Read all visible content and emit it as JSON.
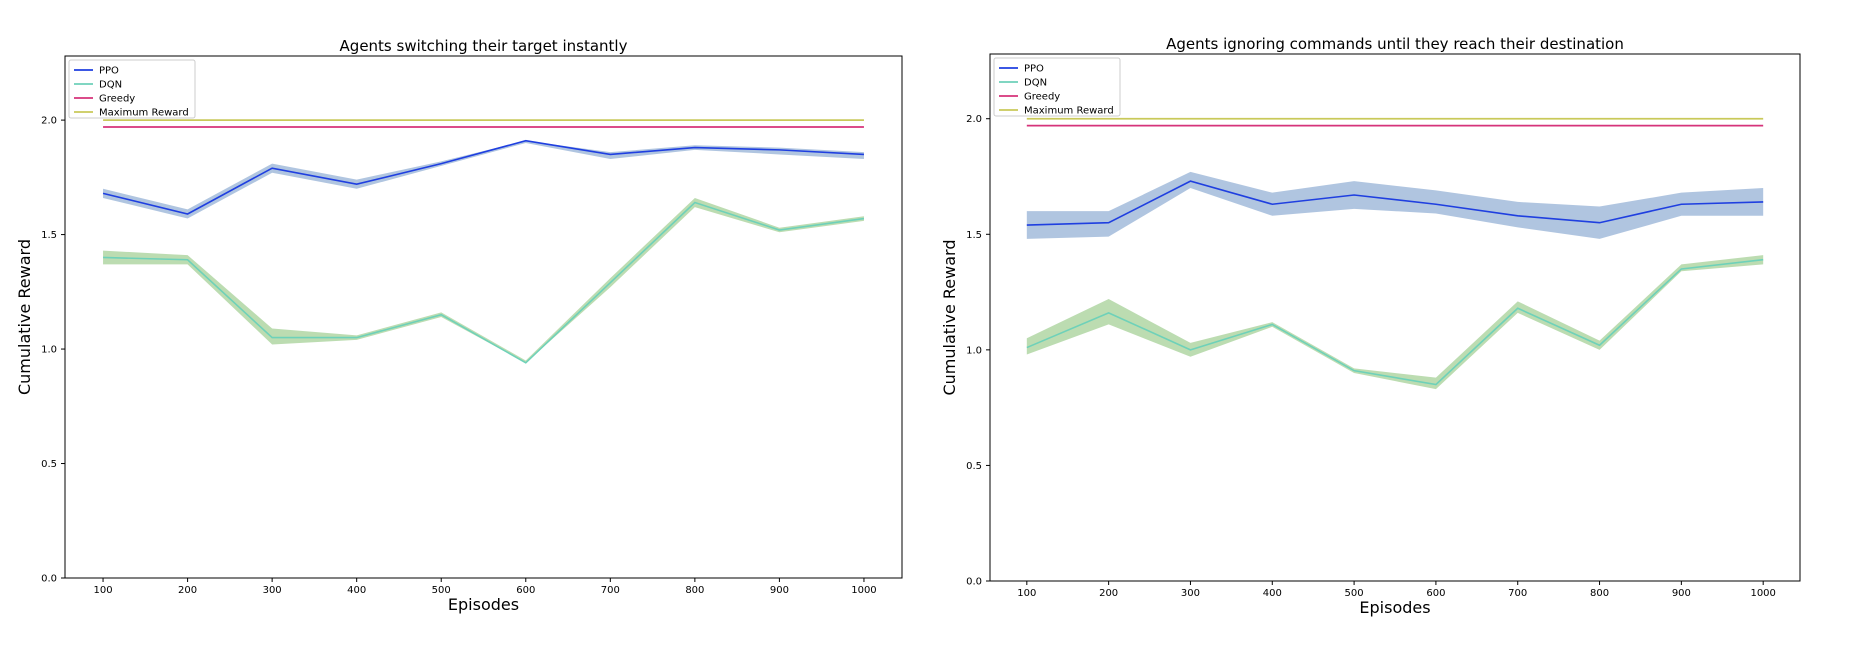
{
  "chart_data": [
    {
      "type": "line",
      "title": "Agents switching their target instantly",
      "xlabel": "Episodes",
      "ylabel": "Cumulative Reward",
      "x": [
        100,
        200,
        300,
        400,
        500,
        600,
        700,
        800,
        900,
        1000
      ],
      "xlim": [
        55,
        1045
      ],
      "ylim": [
        0.0,
        2.28
      ],
      "xticks": [
        "100",
        "200",
        "300",
        "400",
        "500",
        "600",
        "700",
        "800",
        "900",
        "1000"
      ],
      "yticks": [
        "0.0",
        "0.5",
        "1.0",
        "1.5",
        "2.0"
      ],
      "legend_position": "top-left",
      "grid": false,
      "series": [
        {
          "name": "PPO",
          "color": "#1f3fe0",
          "band_color": "#a7bfdd",
          "values": [
            1.68,
            1.59,
            1.79,
            1.72,
            1.81,
            1.91,
            1.85,
            1.88,
            1.87,
            1.85
          ],
          "lower": [
            1.66,
            1.57,
            1.77,
            1.7,
            1.8,
            1.9,
            1.83,
            1.87,
            1.85,
            1.83
          ],
          "upper": [
            1.7,
            1.61,
            1.81,
            1.74,
            1.82,
            1.91,
            1.86,
            1.89,
            1.88,
            1.86
          ]
        },
        {
          "name": "DQN",
          "color": "#6ed1b9",
          "band_color": "#b5d8a8",
          "values": [
            1.4,
            1.39,
            1.05,
            1.05,
            1.15,
            0.94,
            1.29,
            1.64,
            1.52,
            1.57
          ],
          "lower": [
            1.37,
            1.37,
            1.02,
            1.04,
            1.14,
            0.94,
            1.27,
            1.62,
            1.51,
            1.56
          ],
          "upper": [
            1.43,
            1.41,
            1.09,
            1.06,
            1.16,
            0.95,
            1.31,
            1.66,
            1.53,
            1.58
          ]
        },
        {
          "name": "Greedy",
          "color": "#d6337a",
          "values": [
            1.97,
            1.97,
            1.97,
            1.97,
            1.97,
            1.97,
            1.97,
            1.97,
            1.97,
            1.97
          ]
        },
        {
          "name": "Maximum Reward",
          "color": "#c9c95a",
          "values": [
            2.0,
            2.0,
            2.0,
            2.0,
            2.0,
            2.0,
            2.0,
            2.0,
            2.0,
            2.0
          ]
        }
      ]
    },
    {
      "type": "line",
      "title": "Agents ignoring commands until they reach their destination",
      "xlabel": "Episodes",
      "ylabel": "Cumulative Reward",
      "x": [
        100,
        200,
        300,
        400,
        500,
        600,
        700,
        800,
        900,
        1000
      ],
      "xlim": [
        55,
        1045
      ],
      "ylim": [
        0.0,
        2.28
      ],
      "xticks": [
        "100",
        "200",
        "300",
        "400",
        "500",
        "600",
        "700",
        "800",
        "900",
        "1000"
      ],
      "yticks": [
        "0.0",
        "0.5",
        "1.0",
        "1.5",
        "2.0"
      ],
      "legend_position": "top-left",
      "grid": false,
      "series": [
        {
          "name": "PPO",
          "color": "#1f3fe0",
          "band_color": "#a7bfdd",
          "values": [
            1.54,
            1.55,
            1.73,
            1.63,
            1.67,
            1.63,
            1.58,
            1.55,
            1.63,
            1.64
          ],
          "lower": [
            1.48,
            1.49,
            1.7,
            1.58,
            1.61,
            1.59,
            1.53,
            1.48,
            1.58,
            1.58
          ],
          "upper": [
            1.6,
            1.6,
            1.77,
            1.68,
            1.73,
            1.69,
            1.64,
            1.62,
            1.68,
            1.7
          ]
        },
        {
          "name": "DQN",
          "color": "#6ed1b9",
          "band_color": "#b5d8a8",
          "values": [
            1.01,
            1.16,
            1.0,
            1.11,
            0.91,
            0.85,
            1.18,
            1.02,
            1.35,
            1.39
          ],
          "lower": [
            0.98,
            1.11,
            0.97,
            1.1,
            0.9,
            0.83,
            1.16,
            1.0,
            1.34,
            1.37
          ],
          "upper": [
            1.05,
            1.22,
            1.03,
            1.12,
            0.92,
            0.88,
            1.21,
            1.04,
            1.37,
            1.41
          ]
        },
        {
          "name": "Greedy",
          "color": "#d6337a",
          "values": [
            1.97,
            1.97,
            1.97,
            1.97,
            1.97,
            1.97,
            1.97,
            1.97,
            1.97,
            1.97
          ]
        },
        {
          "name": "Maximum Reward",
          "color": "#c9c95a",
          "values": [
            2.0,
            2.0,
            2.0,
            2.0,
            2.0,
            2.0,
            2.0,
            2.0,
            2.0,
            2.0
          ]
        }
      ]
    }
  ]
}
